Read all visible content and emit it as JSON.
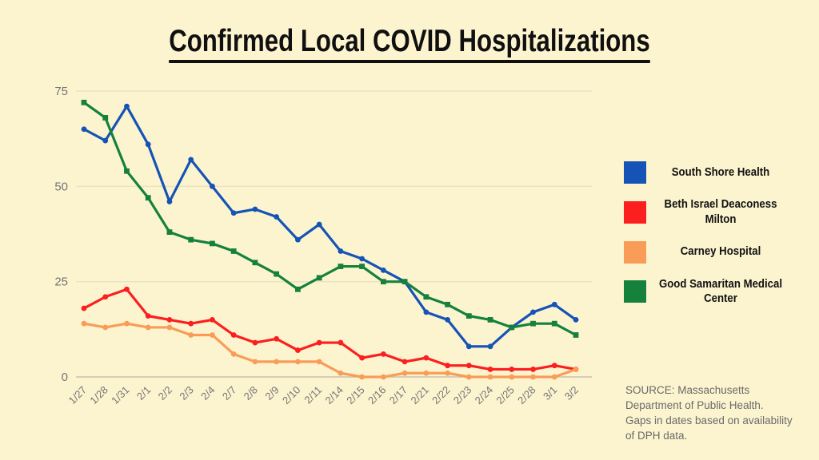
{
  "page": {
    "title": "Confirmed Local COVID Hospitalizations",
    "background_color": "#FCF4CF"
  },
  "chart_data": {
    "type": "line",
    "title": "Confirmed Local COVID Hospitalizations",
    "categories": [
      "1/27",
      "1/28",
      "1/31",
      "2/1",
      "2/2",
      "2/3",
      "2/4",
      "2/7",
      "2/8",
      "2/9",
      "2/10",
      "2/11",
      "2/14",
      "2/15",
      "2/16",
      "2/17",
      "2/21",
      "2/22",
      "2/23",
      "2/24",
      "2/25",
      "2/28",
      "3/1",
      "3/2"
    ],
    "series": [
      {
        "name": "South Shore Health",
        "color": "#1553B6",
        "marker": "circle",
        "values": [
          65,
          62,
          71,
          61,
          46,
          57,
          50,
          43,
          44,
          42,
          36,
          40,
          33,
          31,
          28,
          25,
          17,
          15,
          8,
          8,
          13,
          17,
          19,
          15
        ]
      },
      {
        "name": "Beth Israel Deaconess Milton",
        "color": "#FB1F1F",
        "marker": "circle",
        "values": [
          18,
          21,
          23,
          16,
          15,
          14,
          15,
          11,
          9,
          10,
          7,
          9,
          9,
          5,
          6,
          4,
          5,
          3,
          3,
          2,
          2,
          2,
          3,
          2
        ]
      },
      {
        "name": "Carney Hospital",
        "color": "#F99C58",
        "marker": "circle",
        "values": [
          14,
          13,
          14,
          13,
          13,
          11,
          11,
          6,
          4,
          4,
          4,
          4,
          1,
          0,
          0,
          1,
          1,
          1,
          0,
          0,
          0,
          0,
          0,
          2
        ]
      },
      {
        "name": "Good Samaritan Medical Center",
        "color": "#15813C",
        "marker": "square",
        "values": [
          72,
          68,
          54,
          47,
          38,
          36,
          35,
          33,
          30,
          27,
          23,
          26,
          29,
          29,
          25,
          25,
          21,
          19,
          16,
          15,
          13,
          14,
          14,
          11
        ]
      }
    ],
    "y_ticks": [
      0,
      25,
      50,
      75
    ],
    "ylim": [
      0,
      75
    ],
    "grid": "horizontal",
    "legend_position": "right",
    "xlabel": "",
    "ylabel": "",
    "tick_label_color": "#757575",
    "gridline_color": "#EAE2C4",
    "zeroline_color": "#C7C1AD"
  },
  "legend": {
    "items": [
      {
        "label": "South Shore Health",
        "color": "#1553B6"
      },
      {
        "label": "Beth Israel Deaconess Milton",
        "color": "#FB1F1F"
      },
      {
        "label": "Carney Hospital",
        "color": "#F99C58"
      },
      {
        "label": "Good Samaritan Medical Center",
        "color": "#15813C"
      }
    ]
  },
  "source": {
    "lines": [
      "SOURCE: Massachusetts",
      "Department of Public Health.",
      "Gaps in dates based on availability",
      "of DPH data."
    ]
  }
}
